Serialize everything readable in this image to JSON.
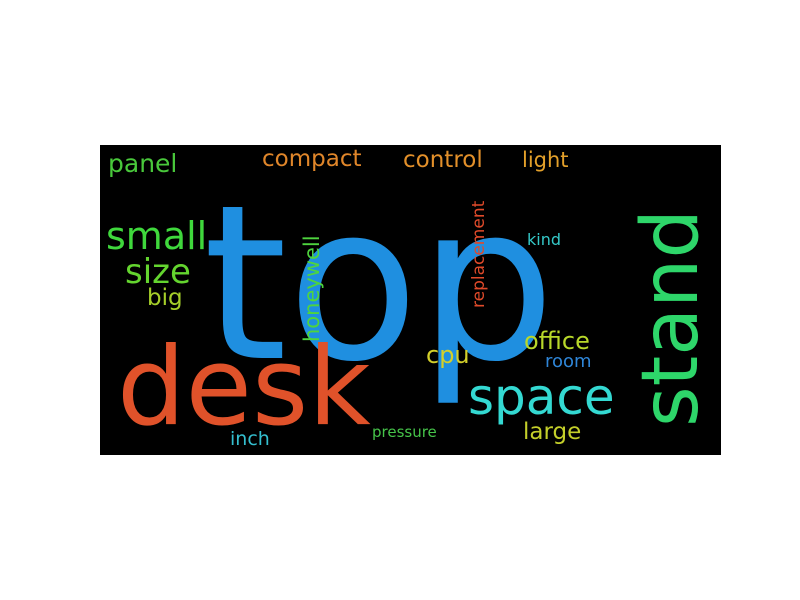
{
  "word_cloud": {
    "background": "#000000",
    "words": [
      {
        "text": "top",
        "color": "#1f8fe0"
      },
      {
        "text": "desk",
        "color": "#e0522a"
      },
      {
        "text": "stand",
        "color": "#2ed66a"
      },
      {
        "text": "space",
        "color": "#34d9d2"
      },
      {
        "text": "small",
        "color": "#3fd83c"
      },
      {
        "text": "size",
        "color": "#64d52f"
      },
      {
        "text": "panel",
        "color": "#49c83b"
      },
      {
        "text": "big",
        "color": "#a6cf2a"
      },
      {
        "text": "compact",
        "color": "#e0862a"
      },
      {
        "text": "control",
        "color": "#e3902a"
      },
      {
        "text": "light",
        "color": "#e3a02a"
      },
      {
        "text": "honeywell",
        "color": "#4ed43e"
      },
      {
        "text": "replacement",
        "color": "#e04a2a"
      },
      {
        "text": "kind",
        "color": "#34c8c8"
      },
      {
        "text": "office",
        "color": "#b8d82a"
      },
      {
        "text": "room",
        "color": "#2f86d8"
      },
      {
        "text": "cpu",
        "color": "#d3cf2a"
      },
      {
        "text": "large",
        "color": "#c4cf2a"
      },
      {
        "text": "inch",
        "color": "#34bfcf"
      },
      {
        "text": "pressure",
        "color": "#46c44a"
      }
    ]
  }
}
